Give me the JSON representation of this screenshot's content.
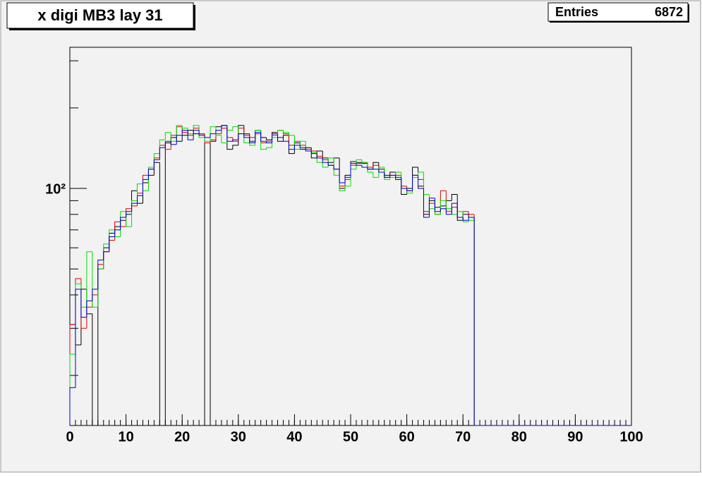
{
  "chart_data": {
    "type": "histogram",
    "title": "x digi MB3 lay 31",
    "stats": {
      "label": "Entries",
      "value": 6872
    },
    "bins": [
      0,
      1,
      2,
      3,
      4,
      5,
      6,
      7,
      8,
      9,
      10,
      11,
      12,
      13,
      14,
      15,
      16,
      17,
      18,
      19,
      20,
      21,
      22,
      23,
      24,
      25,
      26,
      27,
      28,
      29,
      30,
      31,
      32,
      33,
      34,
      35,
      36,
      37,
      38,
      39,
      40,
      41,
      42,
      43,
      44,
      45,
      46,
      47,
      48,
      49,
      50,
      51,
      52,
      53,
      54,
      55,
      56,
      57,
      58,
      59,
      60,
      61,
      62,
      63,
      64,
      65,
      66,
      67,
      68,
      69,
      70,
      71,
      72,
      73,
      74,
      75,
      76,
      77,
      78,
      79,
      80,
      81,
      82,
      83,
      84,
      85,
      86,
      87,
      88,
      89,
      90,
      91,
      92,
      93,
      94,
      95,
      96,
      97,
      98,
      99,
      100
    ],
    "series": [
      {
        "color": "#000000",
        "values": [
          31,
          26,
          42,
          34,
          0,
          50,
          60,
          68,
          72,
          76,
          80,
          98,
          88,
          105,
          112,
          125,
          0,
          148,
          155,
          150,
          158,
          165,
          160,
          160,
          0,
          150,
          170,
          172,
          140,
          145,
          172,
          160,
          150,
          165,
          155,
          152,
          162,
          150,
          158,
          135,
          148,
          140,
          142,
          130,
          138,
          130,
          125,
          130,
          100,
          112,
          126,
          125,
          124,
          118,
          125,
          118,
          112,
          115,
          108,
          95,
          100,
          120,
          102,
          80,
          90,
          85,
          86,
          90,
          95,
          76,
          80,
          78,
          0,
          0,
          0,
          0,
          0,
          0,
          0,
          0,
          0,
          0,
          0,
          0,
          0,
          0,
          0,
          0,
          0,
          0,
          0,
          0,
          0,
          0,
          0,
          0,
          0,
          0,
          0,
          0
        ]
      },
      {
        "color": "#dd0000",
        "values": [
          31,
          46,
          30,
          36,
          40,
          52,
          58,
          64,
          75,
          72,
          84,
          86,
          96,
          112,
          118,
          130,
          145,
          140,
          158,
          170,
          162,
          158,
          168,
          160,
          148,
          152,
          160,
          168,
          155,
          150,
          168,
          158,
          155,
          160,
          148,
          150,
          158,
          165,
          160,
          145,
          150,
          145,
          140,
          138,
          132,
          128,
          122,
          118,
          102,
          108,
          122,
          124,
          125,
          120,
          122,
          115,
          110,
          112,
          112,
          102,
          98,
          112,
          108,
          82,
          88,
          80,
          98,
          82,
          85,
          78,
          82,
          80,
          0,
          0,
          0,
          0,
          0,
          0,
          0,
          0,
          0,
          0,
          0,
          0,
          0,
          0,
          0,
          0,
          0,
          0,
          0,
          0,
          0,
          0,
          0,
          0,
          0,
          0,
          0,
          0
        ]
      },
      {
        "color": "#00e000",
        "values": [
          24,
          44,
          36,
          58,
          36,
          50,
          62,
          70,
          66,
          82,
          72,
          90,
          104,
          98,
          120,
          135,
          152,
          162,
          150,
          172,
          168,
          160,
          172,
          155,
          150,
          170,
          158,
          148,
          165,
          170,
          160,
          148,
          145,
          165,
          140,
          142,
          155,
          165,
          162,
          158,
          140,
          150,
          138,
          136,
          125,
          120,
          130,
          112,
          98,
          102,
          118,
          128,
          125,
          115,
          110,
          120,
          108,
          110,
          115,
          100,
          96,
          110,
          115,
          95,
          84,
          80,
          90,
          84,
          80,
          82,
          75,
          76,
          0,
          0,
          0,
          0,
          0,
          0,
          0,
          0,
          0,
          0,
          0,
          0,
          0,
          0,
          0,
          0,
          0,
          0,
          0,
          0,
          0,
          0,
          0,
          0,
          0,
          0,
          0,
          0
        ]
      },
      {
        "color": "#0000cc",
        "values": [
          18,
          42,
          33,
          38,
          42,
          54,
          58,
          66,
          70,
          78,
          82,
          88,
          94,
          108,
          118,
          128,
          142,
          150,
          146,
          158,
          165,
          152,
          165,
          158,
          155,
          160,
          165,
          172,
          150,
          152,
          160,
          155,
          148,
          162,
          150,
          148,
          160,
          155,
          150,
          140,
          145,
          142,
          138,
          135,
          130,
          125,
          122,
          118,
          105,
          110,
          124,
          122,
          120,
          118,
          118,
          115,
          110,
          112,
          110,
          100,
          98,
          112,
          100,
          78,
          92,
          82,
          84,
          80,
          88,
          78,
          76,
          78,
          0,
          0,
          0,
          0,
          0,
          0,
          0,
          0,
          0,
          0,
          0,
          0,
          0,
          0,
          0,
          0,
          0,
          0,
          0,
          0,
          0,
          0,
          0,
          0,
          0,
          0,
          0,
          0
        ]
      }
    ],
    "xlim": [
      0,
      100
    ],
    "xticks": [
      0,
      10,
      20,
      30,
      40,
      50,
      60,
      70,
      80,
      90,
      100
    ],
    "xminor_step": 1,
    "ylim": [
      13,
      337
    ],
    "log_y": true,
    "yticks": [
      {
        "value": 100,
        "label": "10²"
      }
    ],
    "yminor": [
      20,
      30,
      40,
      50,
      60,
      70,
      80,
      90,
      200,
      300
    ]
  }
}
